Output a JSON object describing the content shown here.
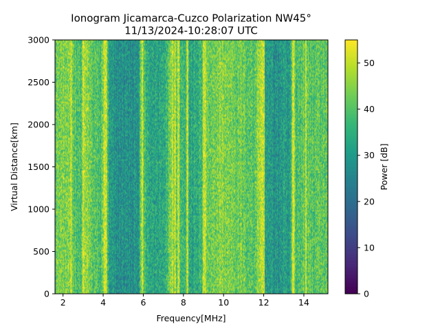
{
  "chart_data": {
    "type": "heatmap",
    "title_line1": "Ionogram Jicamarca-Cuzco Polarization NW45°",
    "title_line2": "11/13/2024-10:28:07 UTC",
    "xlabel": "Frequency[MHz]",
    "ylabel": "Virtual Distance[km]",
    "xlim": [
      1.6,
      15.2
    ],
    "ylim": [
      0,
      3000
    ],
    "x_ticks": [
      2,
      4,
      6,
      8,
      10,
      12,
      14
    ],
    "y_ticks": [
      0,
      500,
      1000,
      1500,
      2000,
      2500,
      3000
    ],
    "colorbar": {
      "label": "Power [dB]",
      "range": [
        0,
        55
      ],
      "ticks": [
        0,
        10,
        20,
        30,
        40,
        50
      ],
      "colormap": "viridis"
    },
    "mean_power_profile_db": {
      "frequency_mhz": [
        1.6,
        2.0,
        2.5,
        2.9,
        3.0,
        3.5,
        3.9,
        4.05,
        4.15,
        4.3,
        4.6,
        5.0,
        5.5,
        5.8,
        5.9,
        6.2,
        6.5,
        7.0,
        7.4,
        7.55,
        7.7,
        8.0,
        8.3,
        8.6,
        8.9,
        9.05,
        9.3,
        9.8,
        10.5,
        11.0,
        11.5,
        11.85,
        11.95,
        12.2,
        12.6,
        13.0,
        13.3,
        13.45,
        13.6,
        14.0,
        14.5,
        15.0,
        15.2
      ],
      "power_db": [
        42,
        44,
        42,
        38,
        48,
        40,
        38,
        50,
        46,
        30,
        27,
        28,
        27,
        30,
        46,
        33,
        32,
        33,
        46,
        48,
        40,
        38,
        32,
        33,
        37,
        48,
        40,
        45,
        43,
        42,
        40,
        49,
        32,
        30,
        28,
        30,
        28,
        48,
        38,
        42,
        40,
        41,
        40
      ]
    },
    "sharp_lines_mhz": [
      2.4,
      3.0,
      4.05,
      4.15,
      5.95,
      7.45,
      7.6,
      7.75,
      8.2,
      9.0,
      9.05,
      11.9,
      12.0,
      13.45,
      13.5,
      14.1
    ]
  }
}
